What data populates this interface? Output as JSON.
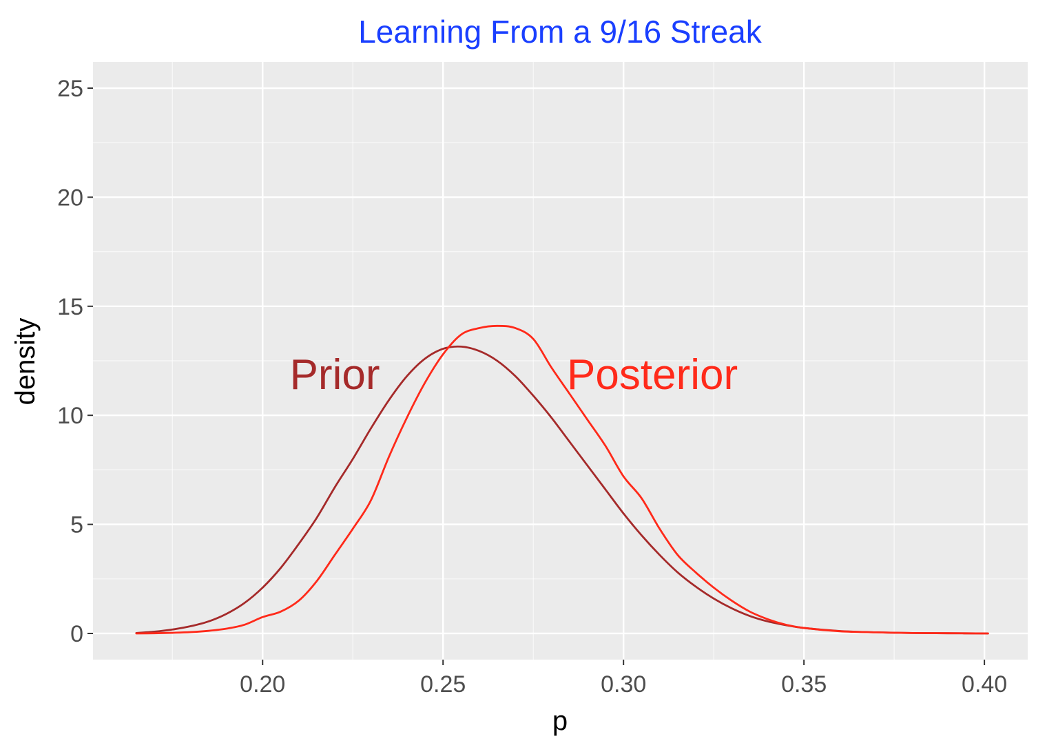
{
  "chart_data": {
    "type": "line",
    "title": "Learning From a 9/16 Streak",
    "xlabel": "p",
    "ylabel": "density",
    "xlim": [
      0.153,
      0.412
    ],
    "ylim": [
      -1.2,
      26.2
    ],
    "x_ticks": [
      "0.20",
      "0.25",
      "0.30",
      "0.35",
      "0.40"
    ],
    "x_tick_values": [
      0.2,
      0.25,
      0.3,
      0.35,
      0.4
    ],
    "y_ticks": [
      "0",
      "5",
      "10",
      "15",
      "20",
      "25"
    ],
    "y_tick_values": [
      0,
      5,
      10,
      15,
      20,
      25
    ],
    "grid": true,
    "legend": "none",
    "annotations": [
      {
        "text": "Prior",
        "x": 0.22,
        "y": 11.9,
        "color": "#A52A2A"
      },
      {
        "text": "Posterior",
        "x": 0.308,
        "y": 11.9,
        "color": "#FF2A1A"
      }
    ],
    "series": [
      {
        "name": "Prior",
        "color": "#A52A2A",
        "x": [
          0.165,
          0.17,
          0.175,
          0.18,
          0.185,
          0.19,
          0.195,
          0.2,
          0.205,
          0.21,
          0.215,
          0.22,
          0.225,
          0.23,
          0.235,
          0.24,
          0.245,
          0.25,
          0.255,
          0.26,
          0.265,
          0.27,
          0.275,
          0.28,
          0.285,
          0.29,
          0.295,
          0.3,
          0.305,
          0.31,
          0.315,
          0.32,
          0.325,
          0.33,
          0.335,
          0.34,
          0.345,
          0.35,
          0.36,
          0.37,
          0.38,
          0.39,
          0.401
        ],
        "y": [
          0.02,
          0.08,
          0.18,
          0.33,
          0.55,
          0.9,
          1.4,
          2.1,
          3.0,
          4.1,
          5.3,
          6.7,
          8.0,
          9.4,
          10.7,
          11.8,
          12.6,
          13.05,
          13.15,
          12.95,
          12.5,
          11.8,
          10.9,
          9.9,
          8.8,
          7.7,
          6.6,
          5.5,
          4.5,
          3.6,
          2.8,
          2.15,
          1.6,
          1.15,
          0.8,
          0.55,
          0.38,
          0.25,
          0.11,
          0.05,
          0.02,
          0.01,
          0.0
        ]
      },
      {
        "name": "Posterior",
        "color": "#FF2A1A",
        "x": [
          0.165,
          0.17,
          0.175,
          0.18,
          0.185,
          0.19,
          0.195,
          0.2,
          0.205,
          0.21,
          0.215,
          0.22,
          0.225,
          0.23,
          0.235,
          0.24,
          0.245,
          0.25,
          0.255,
          0.26,
          0.265,
          0.27,
          0.275,
          0.28,
          0.285,
          0.29,
          0.295,
          0.3,
          0.305,
          0.31,
          0.315,
          0.32,
          0.325,
          0.33,
          0.335,
          0.34,
          0.345,
          0.35,
          0.36,
          0.37,
          0.38,
          0.39,
          0.401
        ],
        "y": [
          0.0,
          0.01,
          0.03,
          0.06,
          0.12,
          0.22,
          0.4,
          0.75,
          1.0,
          1.5,
          2.4,
          3.6,
          4.8,
          6.1,
          8.1,
          9.9,
          11.5,
          12.8,
          13.7,
          14.0,
          14.1,
          14.0,
          13.5,
          12.2,
          11.0,
          9.8,
          8.6,
          7.2,
          6.2,
          4.8,
          3.6,
          2.8,
          2.1,
          1.5,
          1.0,
          0.65,
          0.4,
          0.25,
          0.1,
          0.05,
          0.02,
          0.01,
          0.0
        ]
      }
    ]
  },
  "colors": {
    "title": "#1A3FFF",
    "panel_bg": "#EBEBEB",
    "grid": "#FFFFFF"
  }
}
